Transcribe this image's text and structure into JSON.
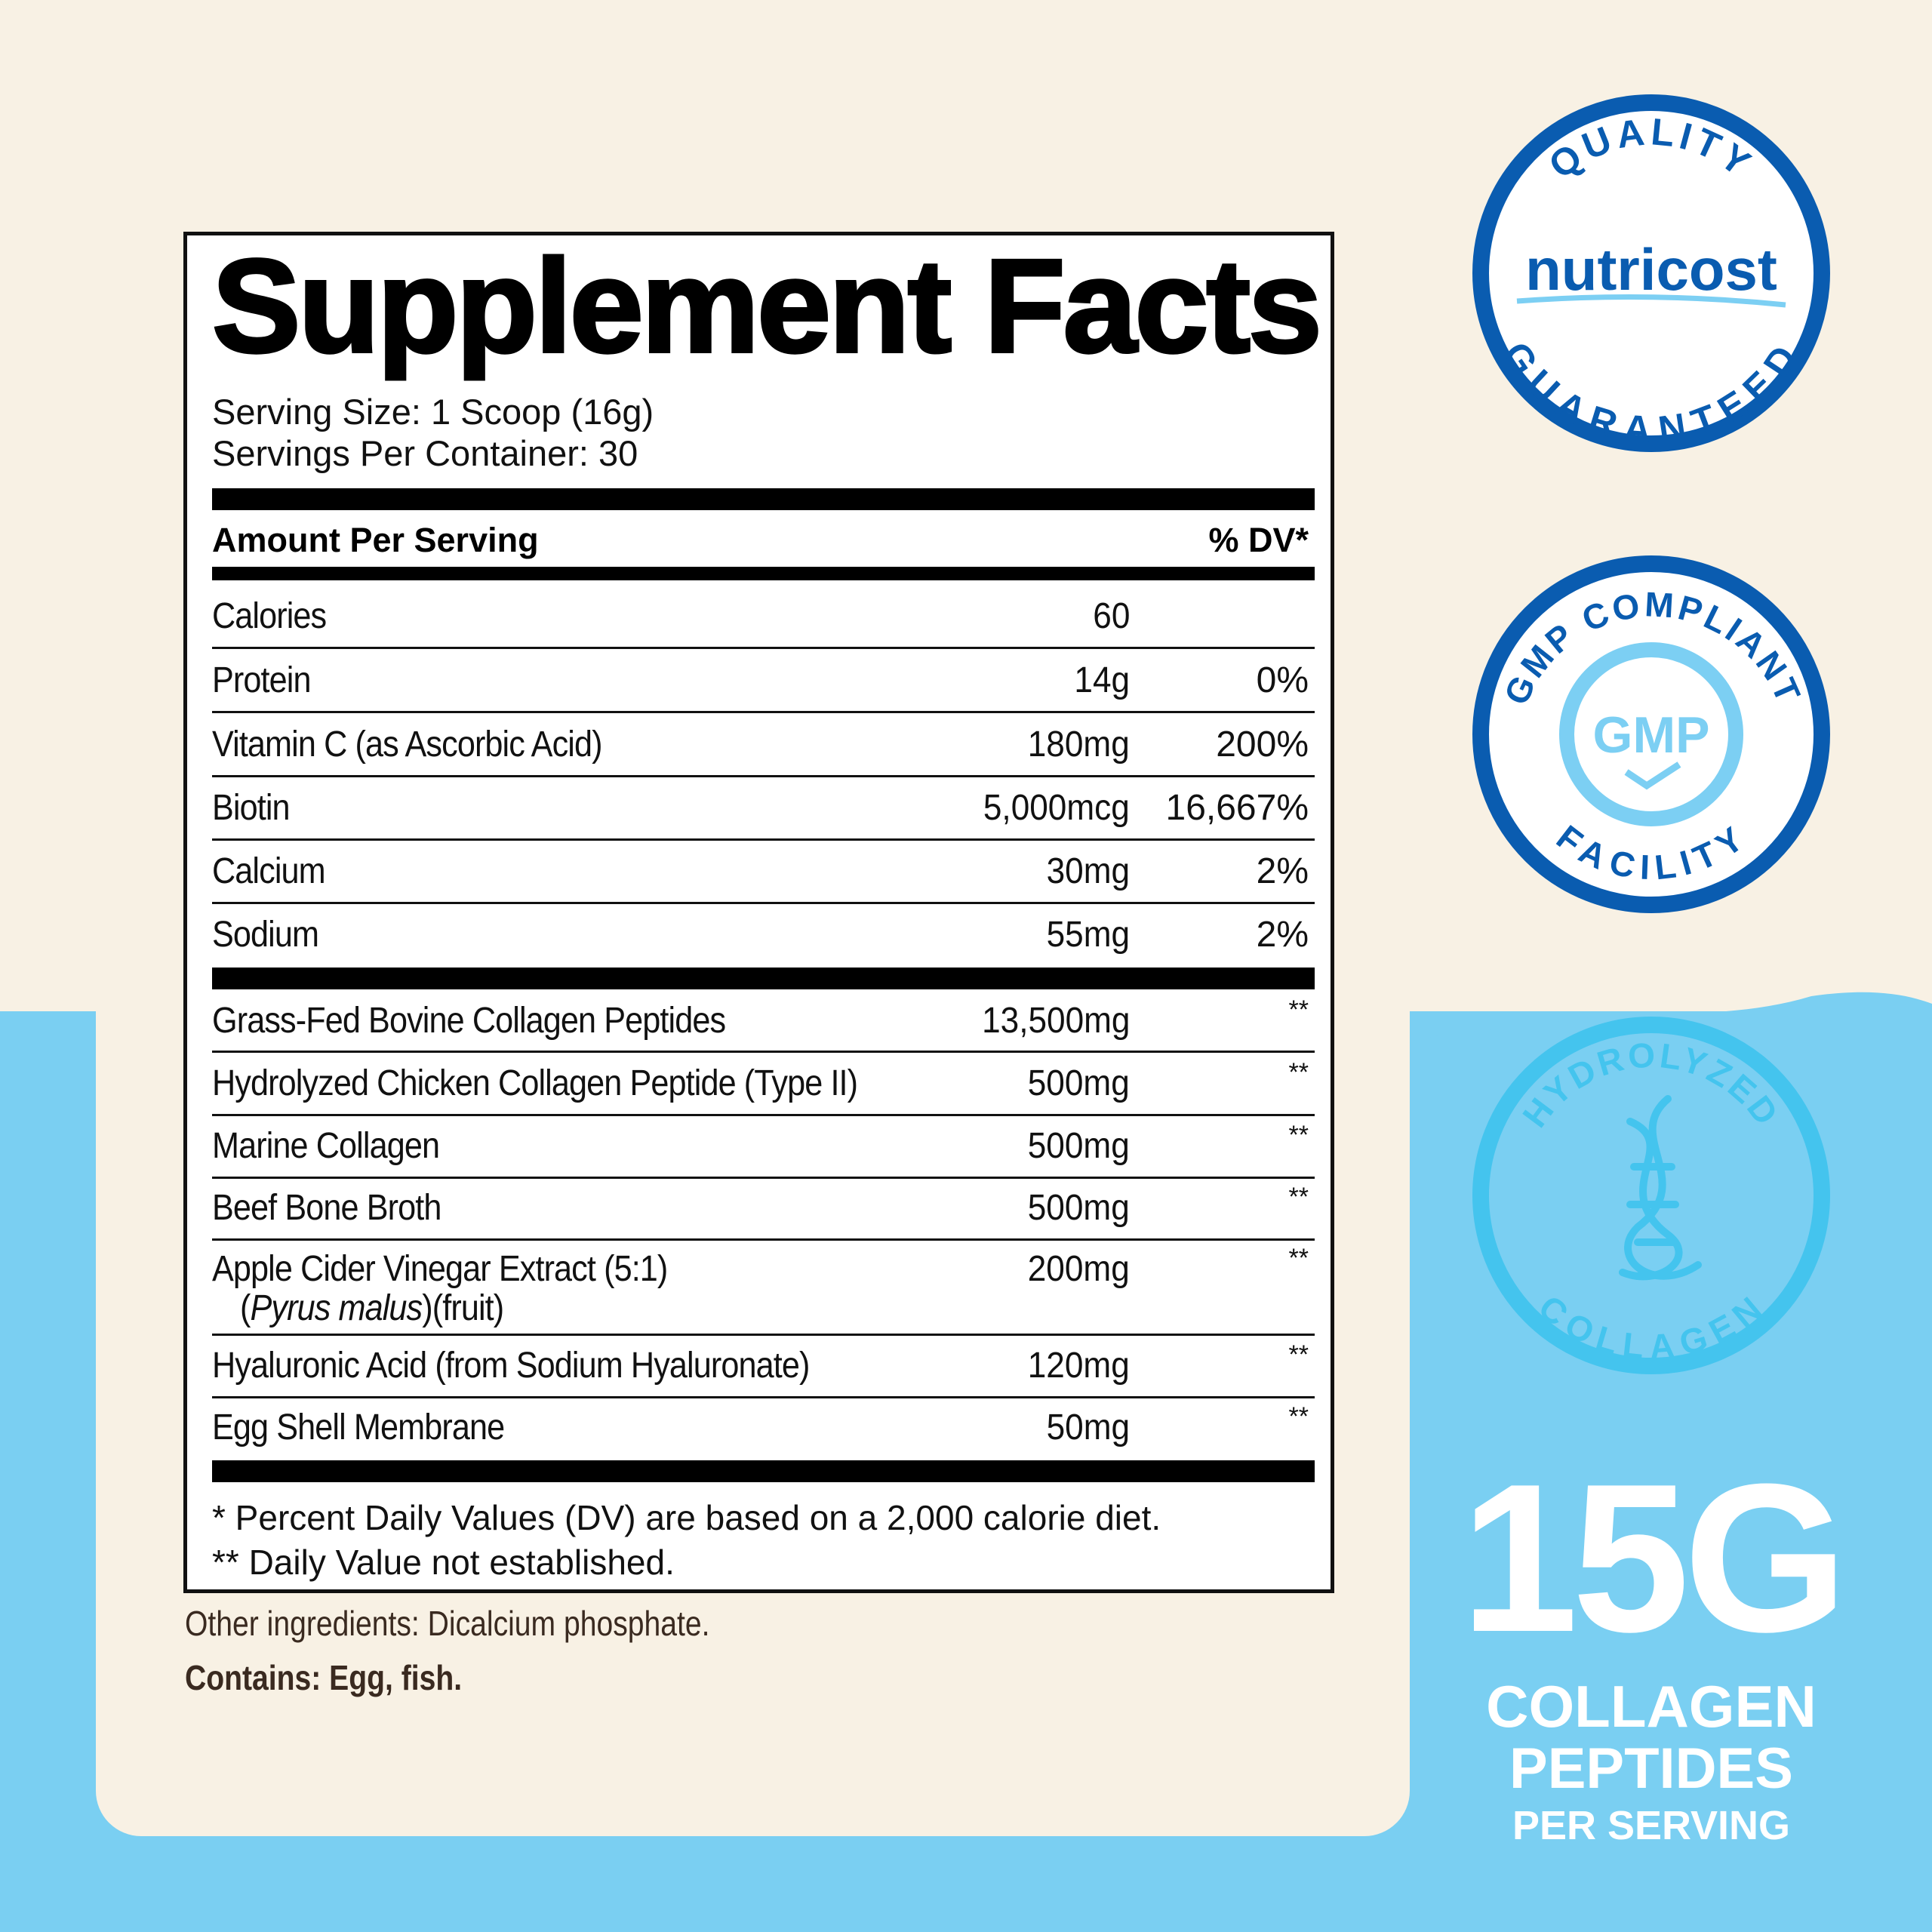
{
  "colors": {
    "cream": "#f8f1e4",
    "sky_blue": "#7acff2",
    "navy": "#0a5cb0",
    "light_blue": "#7ccff3",
    "text": "#111111"
  },
  "facts": {
    "title": "Supplement Facts",
    "serving_size": "Serving Size: 1 Scoop (16g)",
    "servings_per_container": "Servings Per Container: 30",
    "amount_per_serving": "Amount Per Serving",
    "dv_header": "% DV*",
    "nutrients": [
      {
        "name": "Calories",
        "amount": "60",
        "dv": ""
      },
      {
        "name": "Protein",
        "amount": "14g",
        "dv": "0%"
      },
      {
        "name": "Vitamin C (as Ascorbic Acid)",
        "amount": "180mg",
        "dv": "200%"
      },
      {
        "name": "Biotin",
        "amount": "5,000mcg",
        "dv": "16,667%"
      },
      {
        "name": "Calcium",
        "amount": "30mg",
        "dv": "2%"
      },
      {
        "name": "Sodium",
        "amount": "55mg",
        "dv": "2%"
      }
    ],
    "ingredients": [
      {
        "name": "Grass-Fed Bovine Collagen Peptides",
        "amount": "13,500mg",
        "dv": "**"
      },
      {
        "name": "Hydrolyzed Chicken Collagen Peptide (Type II)",
        "amount": "500mg",
        "dv": "**"
      },
      {
        "name": "Marine Collagen",
        "amount": "500mg",
        "dv": "**"
      },
      {
        "name": "Beef Bone Broth",
        "amount": "500mg",
        "dv": "**"
      },
      {
        "name": "Apple Cider Vinegar Extract (5:1)",
        "name_line2_italic": "Pyrus malus",
        "name_line2_rest": "(fruit)",
        "amount": "200mg",
        "dv": "**"
      },
      {
        "name": "Hyaluronic Acid (from Sodium Hyaluronate)",
        "amount": "120mg",
        "dv": "**"
      },
      {
        "name": "Egg Shell Membrane",
        "amount": "50mg",
        "dv": "**"
      }
    ],
    "footnote_1": "* Percent Daily Values (DV) are based on a 2,000 calorie diet.",
    "footnote_2": "** Daily Value not established."
  },
  "other_ingredients": "Other ingredients: Dicalcium phosphate.",
  "contains": "Contains: Egg, fish.",
  "badges": {
    "quality": {
      "top": "QUALITY",
      "brand": "nutricost",
      "bottom": "GUARANTEED"
    },
    "gmp": {
      "top": "GMP COMPLIANT",
      "center": "GMP",
      "bottom": "FACILITY",
      "icon": "checkmark-icon"
    },
    "hydrolyzed": {
      "top": "HYDROLYZED",
      "bottom": "COLLAGEN",
      "icon": "collagen-helix-icon"
    }
  },
  "callout": {
    "amount": "15G",
    "line1": "COLLAGEN",
    "line2": "PEPTIDES",
    "line3": "PER SERVING"
  }
}
